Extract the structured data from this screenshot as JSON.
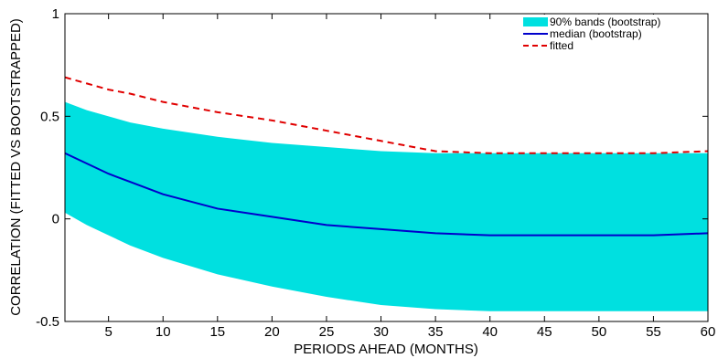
{
  "chart_data": {
    "type": "area",
    "xlabel": "PERIODS AHEAD (MONTHS)",
    "ylabel": "CORRELATION (FITTED VS BOOTSTRAPPED)",
    "xlim": [
      1,
      60
    ],
    "ylim": [
      -0.5,
      1
    ],
    "xticks": [
      5,
      10,
      15,
      20,
      25,
      30,
      35,
      40,
      45,
      50,
      55,
      60
    ],
    "yticks": [
      -0.5,
      0,
      0.5,
      1
    ],
    "legend_position": "top-right",
    "grid": false,
    "x": [
      1,
      3,
      5,
      7,
      10,
      15,
      20,
      25,
      30,
      35,
      40,
      45,
      50,
      55,
      60
    ],
    "series": [
      {
        "name": "90% bands (bootstrap)",
        "kind": "band",
        "color": "#00e0e0",
        "lower": [
          0.03,
          -0.03,
          -0.08,
          -0.13,
          -0.19,
          -0.27,
          -0.33,
          -0.38,
          -0.42,
          -0.44,
          -0.45,
          -0.45,
          -0.45,
          -0.45,
          -0.45
        ],
        "upper": [
          0.57,
          0.53,
          0.5,
          0.47,
          0.44,
          0.4,
          0.37,
          0.35,
          0.33,
          0.32,
          0.32,
          0.32,
          0.32,
          0.32,
          0.32
        ]
      },
      {
        "name": "median (bootstrap)",
        "kind": "line",
        "color": "#0000cc",
        "values": [
          0.32,
          0.27,
          0.22,
          0.18,
          0.12,
          0.05,
          0.01,
          -0.03,
          -0.05,
          -0.07,
          -0.08,
          -0.08,
          -0.08,
          -0.08,
          -0.07
        ]
      },
      {
        "name": "fitted",
        "kind": "dashed-line",
        "color": "#e00000",
        "values": [
          0.69,
          0.66,
          0.63,
          0.61,
          0.57,
          0.52,
          0.48,
          0.43,
          0.38,
          0.33,
          0.32,
          0.32,
          0.32,
          0.32,
          0.33
        ]
      }
    ]
  }
}
